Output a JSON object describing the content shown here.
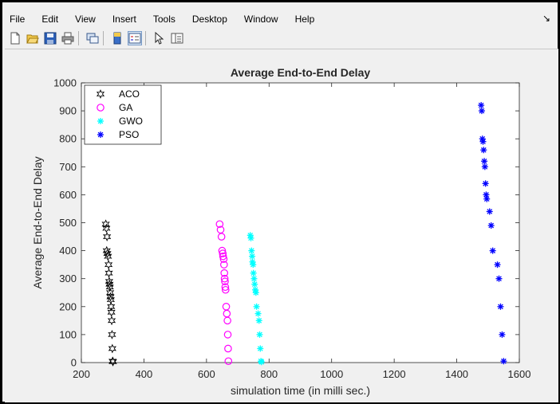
{
  "menu": {
    "items": [
      "File",
      "Edit",
      "View",
      "Insert",
      "Tools",
      "Desktop",
      "Window",
      "Help"
    ]
  },
  "toolbar": {
    "icons": [
      "new-figure-icon",
      "open-file-icon",
      "save-icon",
      "print-icon",
      "link-plot-icon",
      "insert-colorbar-icon",
      "insert-legend-icon",
      "pointer-icon",
      "property-editor-icon"
    ]
  },
  "colors": {
    "ACO": "#000000",
    "GA": "#ff00ff",
    "GWO": "#00ffff",
    "PSO": "#0000ff"
  },
  "chart_data": {
    "type": "scatter",
    "title": "Average End-to-End Delay",
    "xlabel": "simulation time (in milli sec.)",
    "ylabel": "Average End-to-End Delay",
    "xlim": [
      200,
      1600
    ],
    "ylim": [
      0,
      1000
    ],
    "xticks": [
      "200",
      "400",
      "600",
      "800",
      "1000",
      "1200",
      "1400",
      "1600"
    ],
    "yticks": [
      "0",
      "100",
      "200",
      "300",
      "400",
      "500",
      "600",
      "700",
      "800",
      "900",
      "1000"
    ],
    "grid": false,
    "legend_position": "top-left",
    "series": [
      {
        "name": "ACO",
        "marker": "hexagram",
        "points": [
          [
            278,
            495
          ],
          [
            280,
            480
          ],
          [
            282,
            450
          ],
          [
            281,
            400
          ],
          [
            283,
            390
          ],
          [
            285,
            380
          ],
          [
            287,
            350
          ],
          [
            288,
            320
          ],
          [
            289,
            290
          ],
          [
            290,
            280
          ],
          [
            291,
            270
          ],
          [
            292,
            250
          ],
          [
            293,
            235
          ],
          [
            294,
            225
          ],
          [
            295,
            200
          ],
          [
            296,
            180
          ],
          [
            297,
            150
          ],
          [
            298,
            100
          ],
          [
            299,
            50
          ],
          [
            300,
            5
          ],
          [
            301,
            3
          ]
        ]
      },
      {
        "name": "GA",
        "marker": "circle",
        "points": [
          [
            642,
            495
          ],
          [
            645,
            475
          ],
          [
            648,
            450
          ],
          [
            650,
            400
          ],
          [
            652,
            390
          ],
          [
            653,
            380
          ],
          [
            655,
            370
          ],
          [
            656,
            350
          ],
          [
            657,
            320
          ],
          [
            658,
            300
          ],
          [
            659,
            290
          ],
          [
            660,
            270
          ],
          [
            661,
            260
          ],
          [
            663,
            200
          ],
          [
            665,
            175
          ],
          [
            667,
            150
          ],
          [
            668,
            100
          ],
          [
            669,
            50
          ],
          [
            670,
            5
          ]
        ]
      },
      {
        "name": "GWO",
        "marker": "asterisk",
        "points": [
          [
            740,
            455
          ],
          [
            742,
            445
          ],
          [
            744,
            400
          ],
          [
            746,
            380
          ],
          [
            747,
            360
          ],
          [
            749,
            350
          ],
          [
            750,
            320
          ],
          [
            752,
            300
          ],
          [
            754,
            280
          ],
          [
            756,
            260
          ],
          [
            758,
            250
          ],
          [
            760,
            200
          ],
          [
            765,
            175
          ],
          [
            768,
            150
          ],
          [
            770,
            100
          ],
          [
            772,
            50
          ],
          [
            774,
            5
          ],
          [
            776,
            2
          ]
        ]
      },
      {
        "name": "PSO",
        "marker": "asterisk",
        "points": [
          [
            1478,
            920
          ],
          [
            1480,
            900
          ],
          [
            1482,
            800
          ],
          [
            1484,
            790
          ],
          [
            1486,
            760
          ],
          [
            1488,
            720
          ],
          [
            1490,
            700
          ],
          [
            1492,
            640
          ],
          [
            1494,
            600
          ],
          [
            1496,
            585
          ],
          [
            1505,
            540
          ],
          [
            1510,
            490
          ],
          [
            1515,
            400
          ],
          [
            1530,
            350
          ],
          [
            1535,
            300
          ],
          [
            1540,
            200
          ],
          [
            1545,
            100
          ],
          [
            1550,
            5
          ]
        ]
      }
    ]
  }
}
